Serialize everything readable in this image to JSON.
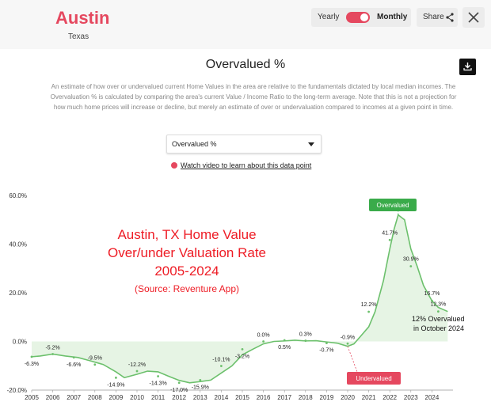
{
  "header": {
    "city": "Austin",
    "state": "Texas",
    "toggle": {
      "left_label": "Yearly",
      "right_label": "Monthly",
      "selected": "Monthly"
    },
    "share_label": "Share"
  },
  "icons": {
    "share": "share-icon",
    "close": "close-icon",
    "download": "download-icon",
    "play": "play-icon"
  },
  "colors": {
    "accent": "#e5485f",
    "line": "#6cc06c",
    "fill": "#e6f4e4",
    "annotation": "#ee1c25",
    "overvalued_badge": "#3aab4a"
  },
  "page": {
    "chart_title": "Overvalued %",
    "description": "An estimate of how over or undervalued current Home Values in the area are relative to the fundamentals dictated by local median incomes. The Overvaluation % is calculated by comparing the area's current Value / Income Ratio to the long-term average. Note that this is not a projection for how much home prices will increase or decline, but merely an estimate of over or undervaluation compared to incomes at a given point in time.",
    "select_value": "Overvalued %",
    "video_link": "Watch video to learn about this data point"
  },
  "overlay": {
    "line1": "Austin, TX Home Value",
    "line2": "Over/under Valuation Rate",
    "line3": "2005-2024",
    "line4": "(Source: Reventure App)"
  },
  "chart_data": {
    "type": "area",
    "title": "Overvalued %",
    "xlabel": "",
    "ylabel": "",
    "xlim": [
      2005,
      2025
    ],
    "ylim": [
      -20,
      60
    ],
    "yticks": [
      -20,
      0,
      20,
      40,
      60
    ],
    "ytick_labels": [
      "-20.0%",
      "0.0%",
      "20.0%",
      "40.0%",
      "60.0%"
    ],
    "xticks": [
      2005,
      2006,
      2007,
      2008,
      2009,
      2010,
      2011,
      2012,
      2013,
      2014,
      2015,
      2016,
      2017,
      2018,
      2019,
      2020,
      2021,
      2022,
      2023,
      2024
    ],
    "grid": false,
    "series": [
      {
        "x": [
          2005.0,
          2005.4,
          2006.0,
          2006.6,
          2007.2,
          2007.8,
          2008.4,
          2009.0,
          2009.4,
          2010.0,
          2010.5,
          2011.0,
          2011.5,
          2012.0,
          2012.5,
          2013.0,
          2013.5,
          2014.0,
          2014.5,
          2015.0,
          2015.5,
          2016.0,
          2016.5,
          2017.0,
          2017.5,
          2018.0,
          2018.5,
          2019.0,
          2019.5,
          2020.0,
          2020.3,
          2020.6,
          2021.0,
          2021.3,
          2021.7,
          2022.0,
          2022.2,
          2022.4,
          2022.7,
          2023.0,
          2023.3,
          2023.6,
          2024.0,
          2024.3,
          2024.75
        ],
        "y": [
          -6.3,
          -6.0,
          -5.2,
          -6.0,
          -6.6,
          -8.0,
          -9.5,
          -12.5,
          -14.9,
          -13.5,
          -12.2,
          -12.5,
          -14.3,
          -16.0,
          -17.0,
          -16.5,
          -15.9,
          -13.0,
          -10.1,
          -5.5,
          -3.2,
          -1.0,
          0.0,
          0.2,
          0.5,
          0.2,
          0.3,
          -0.2,
          -0.7,
          -2.0,
          -1.0,
          2.0,
          6.0,
          12.2,
          25.0,
          38.0,
          46.0,
          52.0,
          50.0,
          38.0,
          30.9,
          23.0,
          16.7,
          14.0,
          12.3
        ]
      }
    ],
    "point_labels": [
      {
        "x": 2005.0,
        "y": -6.3,
        "text": "-6.3%"
      },
      {
        "x": 2006.0,
        "y": -5.2,
        "text": "-5.2%"
      },
      {
        "x": 2007.0,
        "y": -6.6,
        "text": "-6.6%"
      },
      {
        "x": 2008.0,
        "y": -9.5,
        "text": "-9.5%"
      },
      {
        "x": 2009.0,
        "y": -14.9,
        "text": "-14.9%"
      },
      {
        "x": 2010.0,
        "y": -12.2,
        "text": "-12.2%"
      },
      {
        "x": 2011.0,
        "y": -14.3,
        "text": "-14.3%"
      },
      {
        "x": 2012.0,
        "y": -17.0,
        "text": "-17.0%"
      },
      {
        "x": 2013.0,
        "y": -15.9,
        "text": "-15.9%"
      },
      {
        "x": 2014.0,
        "y": -10.1,
        "text": "-10.1%"
      },
      {
        "x": 2015.0,
        "y": -3.2,
        "text": "-3.2%"
      },
      {
        "x": 2016.0,
        "y": 0.0,
        "text": "0.0%"
      },
      {
        "x": 2017.0,
        "y": 0.5,
        "text": "0.5%"
      },
      {
        "x": 2018.0,
        "y": 0.3,
        "text": "0.3%"
      },
      {
        "x": 2019.0,
        "y": -0.7,
        "text": "-0.7%"
      },
      {
        "x": 2020.0,
        "y": -0.9,
        "text": "-0.9%"
      },
      {
        "x": 2021.0,
        "y": 12.2,
        "text": "12.2%"
      },
      {
        "x": 2022.0,
        "y": 41.7,
        "text": "41.7%"
      },
      {
        "x": 2023.0,
        "y": 30.9,
        "text": "30.9%"
      },
      {
        "x": 2024.0,
        "y": 16.7,
        "text": "16.7%"
      },
      {
        "x": 2024.3,
        "y": 12.3,
        "text": "12.3%"
      }
    ],
    "badges": {
      "overvalued": "Overvalued",
      "undervalued": "Undervalued"
    },
    "annotation": {
      "line1": "12% Overvalued",
      "line2": "in October 2024"
    }
  }
}
